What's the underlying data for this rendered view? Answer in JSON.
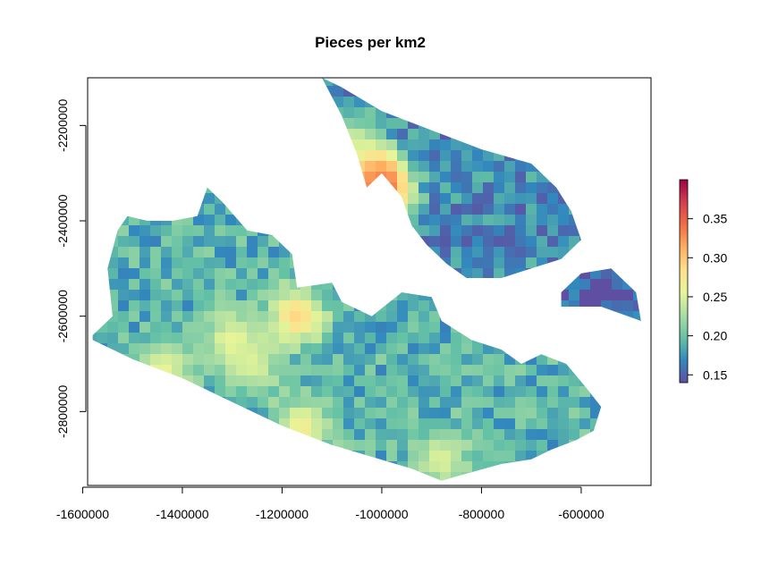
{
  "chart_data": {
    "type": "heatmap",
    "title": "Pieces per km2",
    "xlabel": "",
    "ylabel": "",
    "xlim": [
      -1590000,
      -460000
    ],
    "ylim": [
      -2955000,
      -2100000
    ],
    "x_ticks": [
      -1600000,
      -1400000,
      -1200000,
      -1000000,
      -800000,
      -600000
    ],
    "x_tick_labels": [
      "-1600000",
      "-1400000",
      "-1200000",
      "-1000000",
      "-800000",
      "-600000"
    ],
    "y_ticks": [
      -2200000,
      -2400000,
      -2600000,
      -2800000
    ],
    "y_tick_labels": [
      "-2200000",
      "-2400000",
      "-2600000",
      "-2800000"
    ],
    "legend": {
      "placement": "right",
      "range": [
        0.14,
        0.4
      ],
      "ticks": [
        0.15,
        0.2,
        0.25,
        0.3,
        0.35
      ],
      "tick_labels": [
        "0.15",
        "0.20",
        "0.25",
        "0.30",
        "0.35"
      ],
      "palette": [
        "#5e4fa2",
        "#3288bd",
        "#66c2a5",
        "#abdda4",
        "#e6f598",
        "#fee08b",
        "#fdae61",
        "#f46d43",
        "#d53e4f",
        "#9e0142"
      ]
    },
    "regions": [
      {
        "outline": [
          [
            -1580000,
            -2640000
          ],
          [
            -1540000,
            -2600000
          ],
          [
            -1550000,
            -2500000
          ],
          [
            -1530000,
            -2420000
          ],
          [
            -1510000,
            -2390000
          ],
          [
            -1470000,
            -2400000
          ],
          [
            -1420000,
            -2400000
          ],
          [
            -1370000,
            -2390000
          ],
          [
            -1350000,
            -2330000
          ],
          [
            -1320000,
            -2360000
          ],
          [
            -1270000,
            -2420000
          ],
          [
            -1220000,
            -2430000
          ],
          [
            -1180000,
            -2470000
          ],
          [
            -1170000,
            -2540000
          ],
          [
            -1100000,
            -2530000
          ],
          [
            -1080000,
            -2570000
          ],
          [
            -1020000,
            -2600000
          ],
          [
            -960000,
            -2550000
          ],
          [
            -900000,
            -2560000
          ],
          [
            -880000,
            -2610000
          ],
          [
            -820000,
            -2650000
          ],
          [
            -760000,
            -2670000
          ],
          [
            -720000,
            -2700000
          ],
          [
            -680000,
            -2680000
          ],
          [
            -630000,
            -2700000
          ],
          [
            -590000,
            -2750000
          ],
          [
            -560000,
            -2790000
          ],
          [
            -575000,
            -2840000
          ],
          [
            -610000,
            -2860000
          ],
          [
            -660000,
            -2880000
          ],
          [
            -700000,
            -2900000
          ],
          [
            -760000,
            -2910000
          ],
          [
            -830000,
            -2930000
          ],
          [
            -880000,
            -2945000
          ],
          [
            -940000,
            -2920000
          ],
          [
            -1020000,
            -2895000
          ],
          [
            -1100000,
            -2870000
          ],
          [
            -1200000,
            -2830000
          ],
          [
            -1300000,
            -2780000
          ],
          [
            -1400000,
            -2730000
          ],
          [
            -1500000,
            -2690000
          ],
          [
            -1580000,
            -2650000
          ]
        ],
        "mean": 0.19
      },
      {
        "outline": [
          [
            -1120000,
            -2100000
          ],
          [
            -1080000,
            -2180000
          ],
          [
            -1050000,
            -2260000
          ],
          [
            -1030000,
            -2330000
          ],
          [
            -1000000,
            -2300000
          ],
          [
            -960000,
            -2350000
          ],
          [
            -940000,
            -2410000
          ],
          [
            -910000,
            -2450000
          ],
          [
            -870000,
            -2490000
          ],
          [
            -830000,
            -2520000
          ],
          [
            -760000,
            -2520000
          ],
          [
            -700000,
            -2500000
          ],
          [
            -640000,
            -2480000
          ],
          [
            -600000,
            -2440000
          ],
          [
            -620000,
            -2380000
          ],
          [
            -650000,
            -2330000
          ],
          [
            -700000,
            -2280000
          ],
          [
            -800000,
            -2250000
          ],
          [
            -900000,
            -2210000
          ],
          [
            -1000000,
            -2170000
          ],
          [
            -1080000,
            -2120000
          ],
          [
            -1120000,
            -2100000
          ]
        ],
        "mean": 0.17
      },
      {
        "outline": [
          [
            -640000,
            -2550000
          ],
          [
            -600000,
            -2510000
          ],
          [
            -540000,
            -2500000
          ],
          [
            -490000,
            -2550000
          ],
          [
            -480000,
            -2610000
          ],
          [
            -560000,
            -2580000
          ],
          [
            -640000,
            -2580000
          ]
        ],
        "mean": 0.15
      }
    ],
    "hotspots": [
      {
        "x": -1050000,
        "y": -2310000,
        "value": 0.36
      },
      {
        "x": -1020000,
        "y": -2320000,
        "value": 0.35
      },
      {
        "x": -1000000,
        "y": -2330000,
        "value": 0.34
      },
      {
        "x": -1070000,
        "y": -2330000,
        "value": 0.33
      },
      {
        "x": -1170000,
        "y": -2600000,
        "value": 0.29
      },
      {
        "x": -1300000,
        "y": -2650000,
        "value": 0.26
      },
      {
        "x": -1260000,
        "y": -2700000,
        "value": 0.25
      },
      {
        "x": -1440000,
        "y": -2720000,
        "value": 0.26
      },
      {
        "x": -1160000,
        "y": -2840000,
        "value": 0.27
      },
      {
        "x": -1060000,
        "y": -2240000,
        "value": 0.25
      },
      {
        "x": -880000,
        "y": -2900000,
        "value": 0.25
      }
    ]
  }
}
